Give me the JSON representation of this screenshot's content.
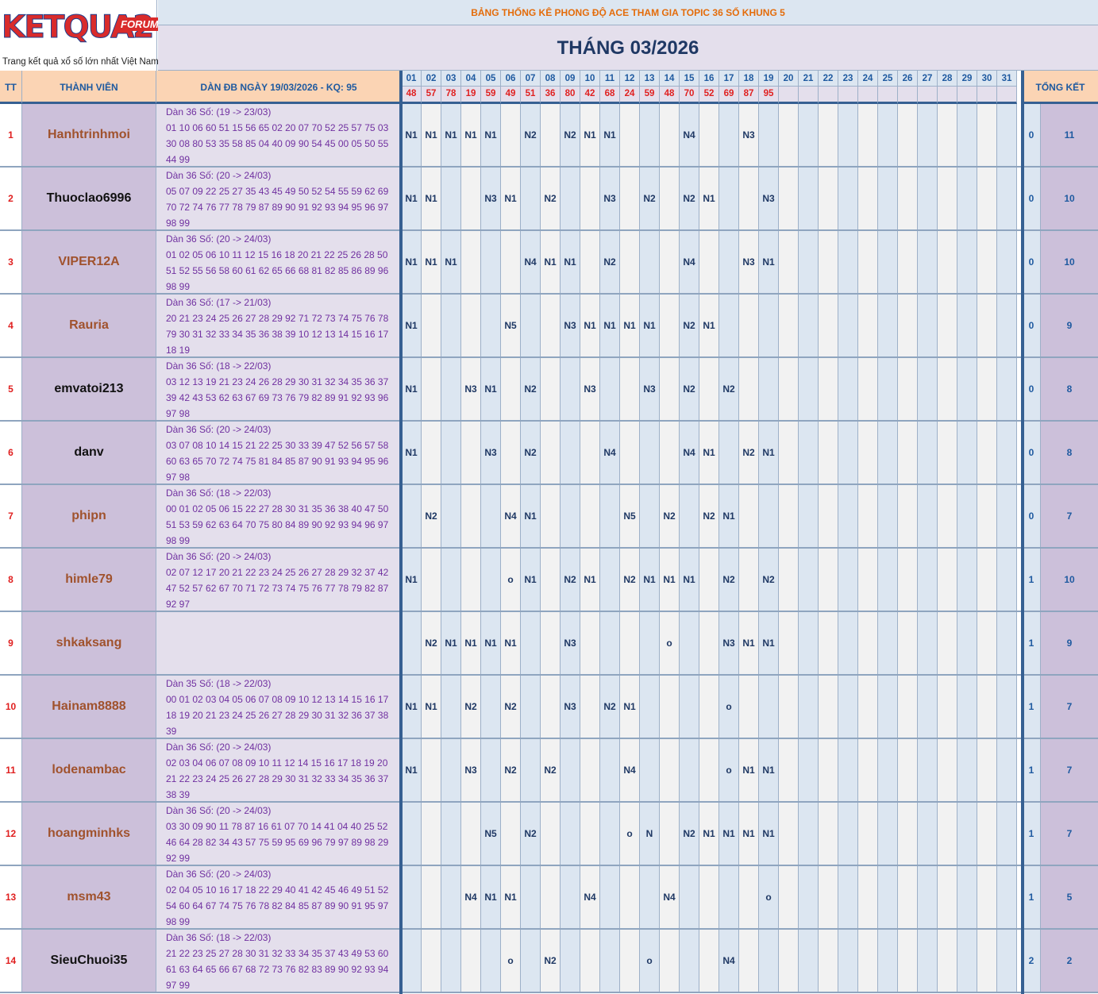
{
  "logo": {
    "brand": "KETQUA2",
    "badge": "FORUM",
    "tagline": "Trang kết quả xổ số lớn nhất Việt Nam"
  },
  "title_top": "BẢNG THỐNG KÊ PHONG ĐỘ ACE THAM GIA TOPIC 36 SỐ KHUNG 5",
  "title_month": "THÁNG 03/2026",
  "header": {
    "tt": "TT",
    "member": "THÀNH VIÊN",
    "dan": "DÀN ĐB NGÀY 19/03/2026 - KQ: 95",
    "total": "TỔNG KẾT"
  },
  "days": [
    "01",
    "02",
    "03",
    "04",
    "05",
    "06",
    "07",
    "08",
    "09",
    "10",
    "11",
    "12",
    "13",
    "14",
    "15",
    "16",
    "17",
    "18",
    "19",
    "20",
    "21",
    "22",
    "23",
    "24",
    "25",
    "26",
    "27",
    "28",
    "29",
    "30",
    "31"
  ],
  "results": [
    "48",
    "57",
    "78",
    "19",
    "59",
    "49",
    "51",
    "36",
    "80",
    "42",
    "68",
    "24",
    "59",
    "48",
    "70",
    "52",
    "69",
    "87",
    "95",
    "",
    "",
    "",
    "",
    "",
    "",
    "",
    "",
    "",
    "",
    "",
    ""
  ],
  "colors": {
    "name_brown": "#a0522d",
    "name_black": "#111111",
    "result_red": "#e02020",
    "title_orange": "#e46c0a"
  },
  "rows": [
    {
      "tt": "1",
      "name": "Hanhtrinhmoi",
      "color": "brown",
      "dan": "Dàn 36 Số: (19 -> 23/03)\n01 10 06 60 51 15 56 65 02 20 07 70 52 25 57 75 03\n30 08 80 53 35 58 85 04 40 09 90 54 45 00 05 50 55\n44 99",
      "marks": [
        "N1",
        "N1",
        "N1",
        "N1",
        "N1",
        "",
        "N2",
        "",
        "N2",
        "N1",
        "N1",
        "",
        "",
        "",
        "N4",
        "",
        "",
        "N3",
        "",
        "",
        "",
        "",
        "",
        "",
        "",
        "",
        "",
        "",
        "",
        "",
        ""
      ],
      "s1": "0",
      "s2": "11"
    },
    {
      "tt": "2",
      "name": "Thuoclao6996",
      "color": "black",
      "dan": "Dàn 36 Số: (20 -> 24/03)\n05 07 09 22 25 27 35 43 45 49 50 52 54 55 59 62 69\n70 72 74 76 77 78 79 87 89 90 91 92 93 94 95 96 97\n98 99",
      "marks": [
        "N1",
        "N1",
        "",
        "",
        "N3",
        "N1",
        "",
        "N2",
        "",
        "",
        "N3",
        "",
        "N2",
        "",
        "N2",
        "N1",
        "",
        "",
        "N3",
        "",
        "",
        "",
        "",
        "",
        "",
        "",
        "",
        "",
        "",
        "",
        ""
      ],
      "s1": "0",
      "s2": "10"
    },
    {
      "tt": "3",
      "name": "VIPER12A",
      "color": "brown",
      "dan": "Dàn 36 Số: (20 -> 24/03)\n01 02 05 06 10 11 12 15 16 18 20 21 22 25 26 28 50\n51 52 55 56 58 60 61 62 65 66 68 81 82 85 86 89 96\n98 99",
      "marks": [
        "N1",
        "N1",
        "N1",
        "",
        "",
        "",
        "N4",
        "N1",
        "N1",
        "",
        "N2",
        "",
        "",
        "",
        "N4",
        "",
        "",
        "N3",
        "N1",
        "",
        "",
        "",
        "",
        "",
        "",
        "",
        "",
        "",
        "",
        "",
        ""
      ],
      "s1": "0",
      "s2": "10"
    },
    {
      "tt": "4",
      "name": "Rauria",
      "color": "brown",
      "dan": "Dàn 36 Số: (17 -> 21/03)\n20 21 23 24 25 26 27 28 29 92 71 72 73 74 75 76 78\n79 30 31 32 33 34 35 36 38 39 10 12 13 14 15 16 17\n18 19",
      "marks": [
        "N1",
        "",
        "",
        "",
        "",
        "N5",
        "",
        "",
        "N3",
        "N1",
        "N1",
        "N1",
        "N1",
        "",
        "N2",
        "N1",
        "",
        "",
        "",
        "",
        "",
        "",
        "",
        "",
        "",
        "",
        "",
        "",
        "",
        "",
        ""
      ],
      "s1": "0",
      "s2": "9"
    },
    {
      "tt": "5",
      "name": "emvatoi213",
      "color": "black",
      "dan": "Dàn 36 Số: (18 -> 22/03)\n03 12 13 19 21 23 24 26 28 29 30 31 32 34 35 36 37\n39 42 43 53 62 63 67 69 73 76 79 82 89 91 92 93 96\n97 98",
      "marks": [
        "N1",
        "",
        "",
        "N3",
        "N1",
        "",
        "N2",
        "",
        "",
        "N3",
        "",
        "",
        "N3",
        "",
        "N2",
        "",
        "N2",
        "",
        "",
        "",
        "",
        "",
        "",
        "",
        "",
        "",
        "",
        "",
        "",
        "",
        ""
      ],
      "s1": "0",
      "s2": "8"
    },
    {
      "tt": "6",
      "name": "danv",
      "color": "black",
      "dan": "Dàn 36 Số: (20 -> 24/03)\n03 07 08 10 14 15 21 22 25 30 33 39 47 52 56 57 58\n60 63 65 70 72 74 75 81 84 85 87 90 91 93 94 95 96\n97 98",
      "marks": [
        "N1",
        "",
        "",
        "",
        "N3",
        "",
        "N2",
        "",
        "",
        "",
        "N4",
        "",
        "",
        "",
        "N4",
        "N1",
        "",
        "N2",
        "N1",
        "",
        "",
        "",
        "",
        "",
        "",
        "",
        "",
        "",
        "",
        "",
        ""
      ],
      "s1": "0",
      "s2": "8"
    },
    {
      "tt": "7",
      "name": "phipn",
      "color": "brown",
      "dan": "Dàn 36 Số: (18 -> 22/03)\n00 01 02 05 06 15 22 27 28 30 31 35 36 38 40 47 50\n51 53 59 62 63 64 70 75 80 84 89 90 92 93 94 96 97\n98 99",
      "marks": [
        "",
        "N2",
        "",
        "",
        "",
        "N4",
        "N1",
        "",
        "",
        "",
        "",
        "N5",
        "",
        "N2",
        "",
        "N2",
        "N1",
        "",
        "",
        "",
        "",
        "",
        "",
        "",
        "",
        "",
        "",
        "",
        "",
        "",
        ""
      ],
      "s1": "0",
      "s2": "7"
    },
    {
      "tt": "8",
      "name": "himle79",
      "color": "brown",
      "dan": "Dàn 36 Số: (20 -> 24/03)\n02 07 12 17 20 21 22 23 24 25 26 27 28 29 32 37 42\n47 52 57 62 67 70 71 72 73 74 75 76 77 78 79 82 87\n92 97",
      "marks": [
        "N1",
        "",
        "",
        "",
        "",
        "o",
        "N1",
        "",
        "N2",
        "N1",
        "",
        "N2",
        "N1",
        "N1",
        "N1",
        "",
        "N2",
        "",
        "N2",
        "",
        "",
        "",
        "",
        "",
        "",
        "",
        "",
        "",
        "",
        "",
        ""
      ],
      "s1": "1",
      "s2": "10"
    },
    {
      "tt": "9",
      "name": "shkaksang",
      "color": "brown",
      "dan": "",
      "marks": [
        "",
        "N2",
        "N1",
        "N1",
        "N1",
        "N1",
        "",
        "",
        "N3",
        "",
        "",
        "",
        "",
        "o",
        "",
        "",
        "N3",
        "N1",
        "N1",
        "",
        "",
        "",
        "",
        "",
        "",
        "",
        "",
        "",
        "",
        "",
        ""
      ],
      "s1": "1",
      "s2": "9"
    },
    {
      "tt": "10",
      "name": "Hainam8888",
      "color": "brown",
      "dan": "Dàn 35 Số: (18 -> 22/03)\n00 01 02 03 04 05 06 07 08 09 10 12 13 14 15 16 17\n18 19 20 21 23 24 25 26 27 28 29 30 31 32 36 37 38\n39",
      "marks": [
        "N1",
        "N1",
        "",
        "N2",
        "",
        "N2",
        "",
        "",
        "N3",
        "",
        "N2",
        "N1",
        "",
        "",
        "",
        "",
        "o",
        "",
        "",
        "",
        "",
        "",
        "",
        "",
        "",
        "",
        "",
        "",
        "",
        "",
        ""
      ],
      "s1": "1",
      "s2": "7"
    },
    {
      "tt": "11",
      "name": "lodenambac",
      "color": "brown",
      "dan": "Dàn 36 Số: (20 -> 24/03)\n02 03 04 06 07 08 09 10 11 12 14 15 16 17 18 19 20\n21 22 23 24 25 26 27 28 29 30 31 32 33 34 35 36 37\n38 39",
      "marks": [
        "N1",
        "",
        "",
        "N3",
        "",
        "N2",
        "",
        "N2",
        "",
        "",
        "",
        "N4",
        "",
        "",
        "",
        "",
        "o",
        "N1",
        "N1",
        "",
        "",
        "",
        "",
        "",
        "",
        "",
        "",
        "",
        "",
        "",
        ""
      ],
      "s1": "1",
      "s2": "7"
    },
    {
      "tt": "12",
      "name": "hoangminhks",
      "color": "brown",
      "dan": "Dàn 36 Số: (20 -> 24/03)\n03 30 09 90 11 78 87 16 61 07 70 14 41 04 40 25 52\n46 64 28 82 34 43 57 75 59 95 69 96 79 97 89 98 29\n92 99",
      "marks": [
        "",
        "",
        "",
        "",
        "N5",
        "",
        "N2",
        "",
        "",
        "",
        "",
        "o",
        "N",
        "",
        "N2",
        "N1",
        "N1",
        "N1",
        "N1",
        "",
        "",
        "",
        "",
        "",
        "",
        "",
        "",
        "",
        "",
        "",
        ""
      ],
      "s1": "1",
      "s2": "7"
    },
    {
      "tt": "13",
      "name": "msm43",
      "color": "brown",
      "dan": "Dàn 36 Số: (20 -> 24/03)\n02 04 05 10 16 17 18 22 29 40 41 42 45 46 49 51 52\n54 60 64 67 74 75 76 78 82 84 85 87 89 90 91 95 97\n98 99",
      "marks": [
        "",
        "",
        "",
        "N4",
        "N1",
        "N1",
        "",
        "",
        "",
        "N4",
        "",
        "",
        "",
        "N4",
        "",
        "",
        "",
        "",
        "o",
        "",
        "",
        "",
        "",
        "",
        "",
        "",
        "",
        "",
        "",
        "",
        ""
      ],
      "s1": "1",
      "s2": "5"
    },
    {
      "tt": "14",
      "name": "SieuChuoi35",
      "color": "black",
      "dan": "Dàn 36 Số: (18 -> 22/03)\n21 22 23 25 27 28 30 31 32 33 34 35 37 43 49 53 60\n61 63 64 65 66 67 68 72 73 76 82 83 89 90 92 93 94\n97 99",
      "marks": [
        "",
        "",
        "",
        "",
        "",
        "o",
        "",
        "N2",
        "",
        "",
        "",
        "",
        "o",
        "",
        "",
        "",
        "N4",
        "",
        "",
        "",
        "",
        "",
        "",
        "",
        "",
        "",
        "",
        "",
        "",
        "",
        ""
      ],
      "s1": "2",
      "s2": "2"
    }
  ]
}
